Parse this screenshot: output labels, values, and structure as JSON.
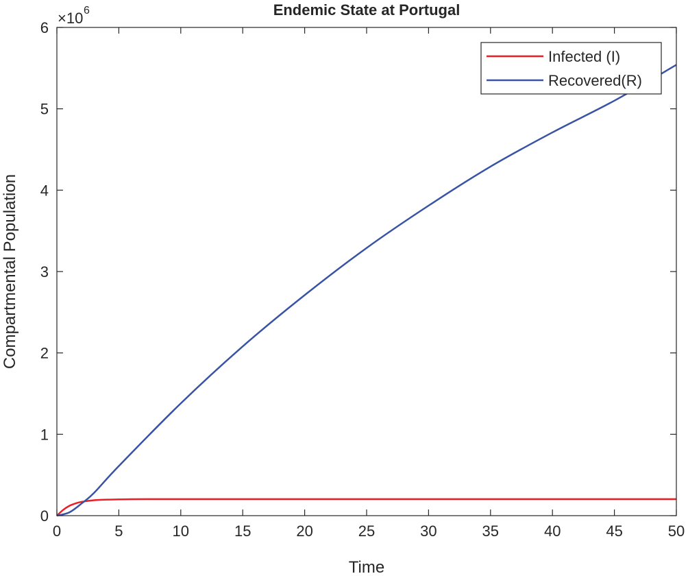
{
  "chart_data": {
    "type": "line",
    "title": "Endemic State at Portugal",
    "xlabel": "Time",
    "ylabel": "Compartmental Population",
    "y_exponent_label": "×10",
    "y_exponent": "6",
    "xlim": [
      0,
      50
    ],
    "ylim": [
      0,
      6
    ],
    "y_scale": 1000000,
    "x_ticks": [
      "0",
      "5",
      "10",
      "15",
      "20",
      "25",
      "30",
      "35",
      "40",
      "45",
      "50"
    ],
    "y_ticks": [
      "0",
      "1",
      "2",
      "3",
      "4",
      "5",
      "6"
    ],
    "grid": false,
    "legend_position": "top-right",
    "series": [
      {
        "name": "Infected (I)",
        "color": "#ee1c25",
        "x": [
          0,
          0.5,
          1,
          1.5,
          2,
          3,
          4,
          5,
          6,
          8,
          10,
          20,
          30,
          40,
          50
        ],
        "y": [
          0,
          0.07,
          0.12,
          0.15,
          0.17,
          0.19,
          0.197,
          0.2,
          0.202,
          0.203,
          0.203,
          0.203,
          0.203,
          0.203,
          0.203
        ]
      },
      {
        "name": "Recovered(R)",
        "color": "#3953a4",
        "x": [
          0,
          1,
          2,
          3,
          5,
          10,
          15,
          20,
          25,
          30,
          35,
          40,
          45,
          50
        ],
        "y": [
          0,
          0.04,
          0.15,
          0.28,
          0.61,
          1.38,
          2.08,
          2.71,
          3.29,
          3.81,
          4.29,
          4.71,
          5.1,
          5.54
        ]
      }
    ]
  }
}
